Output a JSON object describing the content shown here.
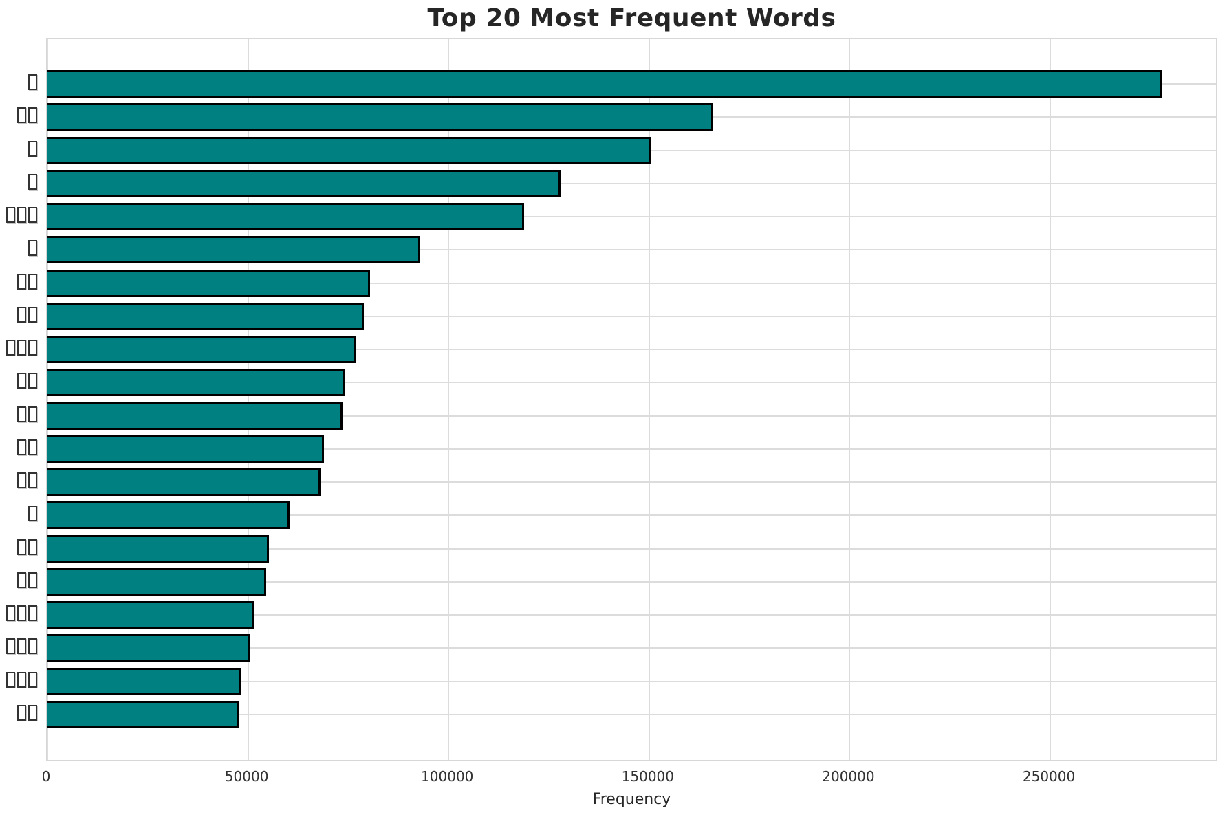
{
  "chart_data": {
    "type": "bar",
    "orientation": "horizontal",
    "title": "Top 20 Most Frequent Words",
    "xlabel": "Frequency",
    "ylabel": "",
    "legend": "none",
    "grid": true,
    "xlim": [
      0,
      292000
    ],
    "x_ticks": [
      0,
      50000,
      100000,
      150000,
      200000,
      250000
    ],
    "bar_color": "#008080",
    "bar_edge_color": "#000000",
    "grid_color": "#dcdcdc",
    "background_color": "#ffffff",
    "categories": [
      "□",
      "□□",
      "□",
      "□",
      "□□□",
      "□",
      "□□",
      "□□",
      "□□□",
      "□□",
      "□□",
      "□□",
      "□□",
      "□",
      "□□",
      "□□",
      "□□□",
      "□□□",
      "□□□",
      "□□"
    ],
    "categories_note": "labels rendered as missing-glyph boxes",
    "values": [
      278000,
      166000,
      150300,
      127900,
      118900,
      93000,
      80500,
      78800,
      76800,
      74100,
      73500,
      69000,
      68000,
      60400,
      55200,
      54600,
      51500,
      50600,
      48300,
      47600
    ]
  }
}
